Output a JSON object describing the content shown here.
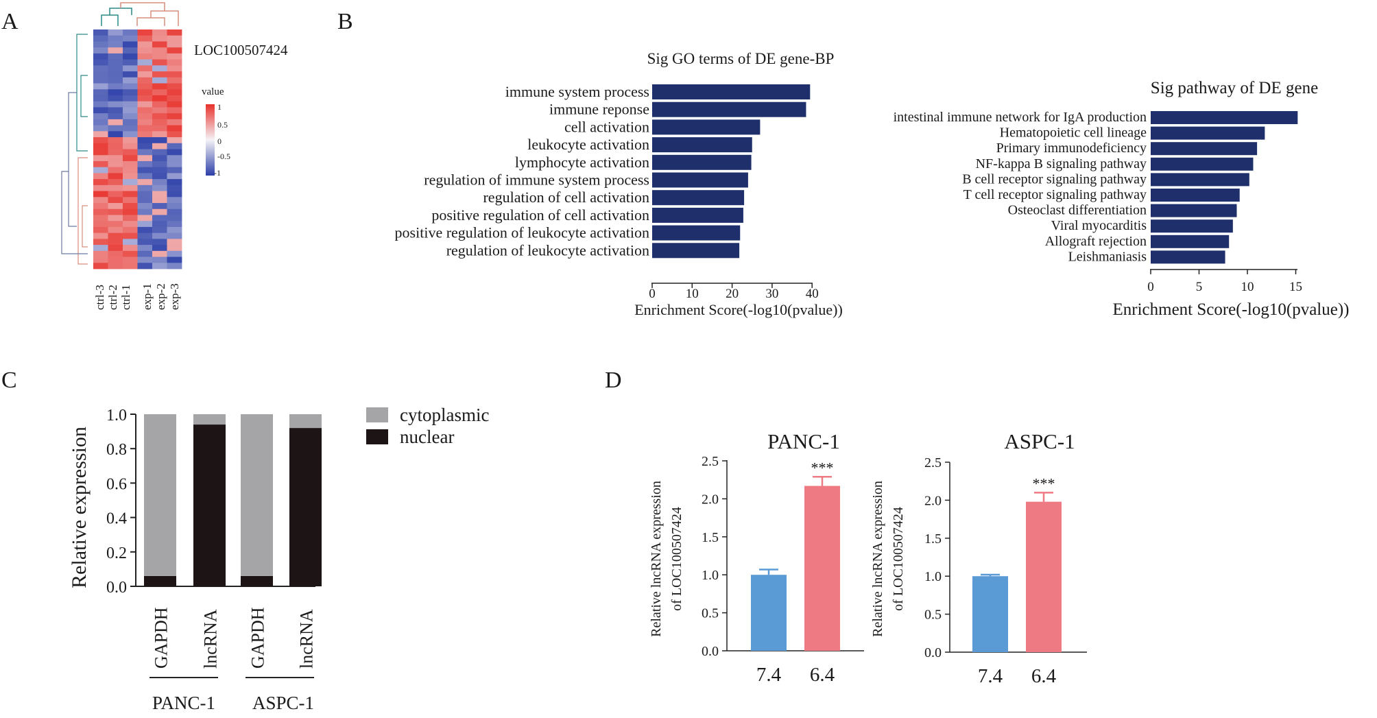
{
  "panel_labels": {
    "a": "A",
    "b": "B",
    "c": "C",
    "d": "D"
  },
  "colors": {
    "navy": "#1f2f6b",
    "heat_high": "#e8322c",
    "heat_mid": "#f4f2f6",
    "heat_low": "#2c3fa8",
    "grey": "#a5a5a7",
    "black": "#1c1415",
    "blue": "#5b9bd5",
    "pink": "#ee7a83"
  },
  "chart_data": [
    {
      "id": "A",
      "type": "heatmap",
      "title": "",
      "gene_label": "LOC100507424",
      "legend_title": "value",
      "legend_ticks": [
        "1",
        "0.5",
        "0",
        "-0.5",
        "-1"
      ],
      "columns": [
        "ctrl-3",
        "ctrl-2",
        "ctrl-1",
        "exp-1",
        "exp-2",
        "exp-3"
      ],
      "rows": 40,
      "pattern": "upper block: ctrl low / exp high; lower block: ctrl high / exp low"
    },
    {
      "id": "B1",
      "type": "bar",
      "orientation": "horizontal",
      "title": "Sig GO terms of DE gene-BP",
      "categories": [
        "immune system process",
        "immune reponse",
        "cell activation",
        "leukocyte activation",
        "lymphocyte activation",
        "regulation of immune system process",
        "regulation of cell activation",
        "positive regulation of cell activation",
        "positive regulation of  leukocyte activation",
        "regulation of  leukocyte activation"
      ],
      "values": [
        39.5,
        38.5,
        27,
        25,
        24.8,
        24,
        23,
        22.8,
        22,
        21.8
      ],
      "xlabel": "Enrichment Score(-log10(pvalue))",
      "xlim": [
        0,
        40
      ],
      "xticks": [
        "0",
        "10",
        "20",
        "30",
        "40"
      ]
    },
    {
      "id": "B2",
      "type": "bar",
      "orientation": "horizontal",
      "title": "Sig pathway of DE gene",
      "categories": [
        "intestinal immune network for IgA production",
        "Hematopoietic cell lineage",
        "Primary immunodeficiency",
        "NF-kappa B signaling pathway",
        "B cell receptor signaling pathway",
        "T cell receptor signaling pathway",
        "Osteoclast differentiation",
        "Viral myocarditis",
        "Allograft rejection",
        "Leishmaniasis"
      ],
      "values": [
        15.2,
        11.8,
        11,
        10.6,
        10.2,
        9.2,
        8.9,
        8.5,
        8.1,
        7.7
      ],
      "xlabel": "Enrichment Score(-log10(pvalue))",
      "xlim": [
        0,
        15
      ],
      "xticks": [
        "0",
        "5",
        "10",
        "15"
      ]
    },
    {
      "id": "C",
      "type": "bar",
      "stacked": true,
      "categories": [
        "GAPDH",
        "lncRNA",
        "GAPDH",
        "lncRNA"
      ],
      "groups": [
        "PANC-1",
        "ASPC-1"
      ],
      "series": [
        {
          "name": "nuclear",
          "values": [
            0.06,
            0.94,
            0.06,
            0.92
          ]
        },
        {
          "name": "cytoplasmic",
          "values": [
            0.94,
            0.06,
            0.94,
            0.08
          ]
        }
      ],
      "legend": [
        "cytoplasmic",
        "nuclear"
      ],
      "ylabel": "Relative expression",
      "ylim": [
        0,
        1.0
      ],
      "yticks": [
        "0.0",
        "0.2",
        "0.4",
        "0.6",
        "0.8",
        "1.0"
      ]
    },
    {
      "id": "D1",
      "type": "bar",
      "title": "PANC-1",
      "categories": [
        "7.4",
        "6.4"
      ],
      "values": [
        1.0,
        2.17
      ],
      "errors": [
        0.07,
        0.12
      ],
      "significance": "***",
      "ylabel_line1": "Relative lncRNA expression",
      "ylabel_line2": "of LOC100507424",
      "ylim": [
        0,
        2.5
      ],
      "yticks": [
        "0.0",
        "0.5",
        "1.0",
        "1.5",
        "2.0",
        "2.5"
      ]
    },
    {
      "id": "D2",
      "type": "bar",
      "title": "ASPC-1",
      "categories": [
        "7.4",
        "6.4"
      ],
      "values": [
        1.0,
        1.98
      ],
      "errors": [
        0.02,
        0.12
      ],
      "significance": "***",
      "ylabel_line1": "Relative lncRNA expression",
      "ylabel_line2": "of LOC100507424",
      "ylim": [
        0,
        2.5
      ],
      "yticks": [
        "0.0",
        "0.5",
        "1.0",
        "1.5",
        "2.0",
        "2.5"
      ]
    }
  ]
}
